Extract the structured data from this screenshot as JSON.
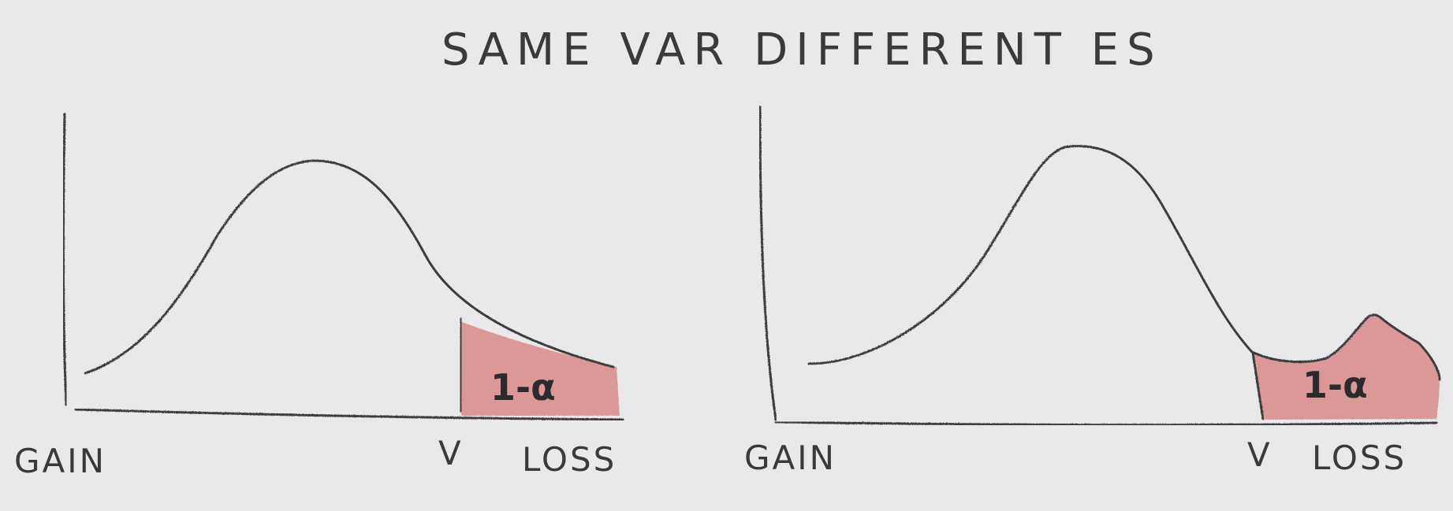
{
  "title": "SAME VAR DIFFERENT ES",
  "colors": {
    "paper": "#e9e8ea",
    "pencil": "#3d3d3f",
    "tail_fill": "#d98a8a"
  },
  "panels": [
    {
      "id": "left",
      "gain_label": "GAIN",
      "var_label": "V",
      "loss_label": "LOSS",
      "tail_label": "1-α"
    },
    {
      "id": "right",
      "gain_label": "GAIN",
      "var_label": "V",
      "loss_label": "LOSS",
      "tail_label": "1-α"
    }
  ]
}
